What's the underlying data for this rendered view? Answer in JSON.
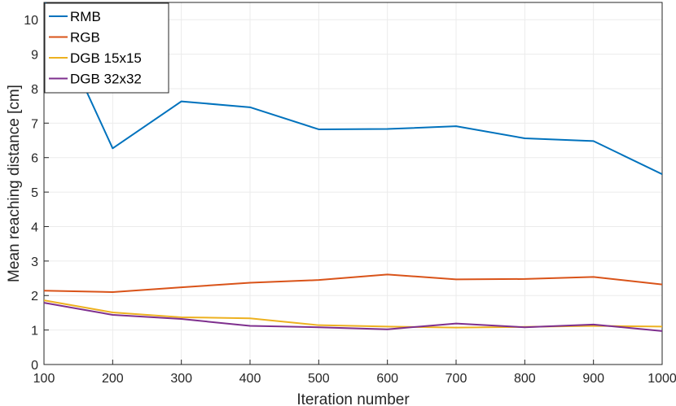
{
  "chart_data": {
    "type": "line",
    "xlabel": "Iteration number",
    "ylabel": "Mean reaching distance [cm]",
    "xlim": [
      100,
      1000
    ],
    "ylim": [
      0,
      10.5
    ],
    "xticks": [
      100,
      200,
      300,
      400,
      500,
      600,
      700,
      800,
      900,
      1000
    ],
    "yticks": [
      0,
      1,
      2,
      3,
      4,
      5,
      6,
      7,
      8,
      9,
      10
    ],
    "grid": true,
    "legend_position": "top-left",
    "x": [
      100,
      200,
      300,
      400,
      500,
      600,
      700,
      800,
      900,
      1000
    ],
    "series": [
      {
        "name": "RMB",
        "color": "#0072BD",
        "values": [
          10.6,
          6.27,
          7.63,
          7.46,
          6.82,
          6.83,
          6.91,
          6.56,
          6.48,
          5.52
        ]
      },
      {
        "name": "RGB",
        "color": "#D95319",
        "values": [
          2.14,
          2.1,
          2.24,
          2.37,
          2.45,
          2.61,
          2.47,
          2.48,
          2.54,
          2.32
        ]
      },
      {
        "name": "DGB 15x15",
        "color": "#EDB120",
        "values": [
          1.86,
          1.51,
          1.37,
          1.34,
          1.14,
          1.1,
          1.07,
          1.09,
          1.12,
          1.1
        ]
      },
      {
        "name": "DGB 32x32",
        "color": "#7E2F8E",
        "values": [
          1.79,
          1.44,
          1.32,
          1.12,
          1.08,
          1.02,
          1.19,
          1.08,
          1.16,
          0.97
        ]
      }
    ]
  }
}
